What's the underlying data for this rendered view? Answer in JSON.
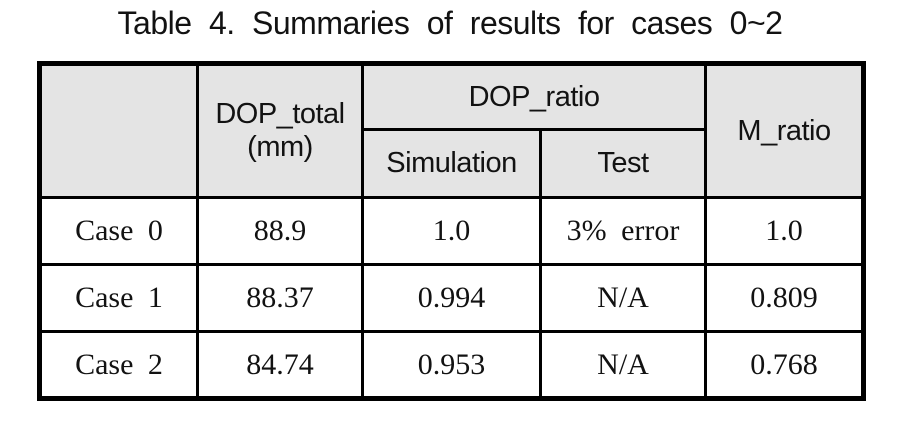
{
  "page": {
    "title": "Table 4. Summaries of results for cases 0~2"
  },
  "table": {
    "header": {
      "corner": "",
      "dop_total_line1": "DOP_total",
      "dop_total_line2": "(mm)",
      "dop_ratio": "DOP_ratio",
      "simulation": "Simulation",
      "test": "Test",
      "m_ratio": "M_ratio"
    },
    "rows": [
      {
        "case": "Case 0",
        "dop_total": "88.9",
        "dop_ratio_simulation": "1.0",
        "dop_ratio_test": "3% error",
        "m_ratio": "1.0"
      },
      {
        "case": "Case 1",
        "dop_total": "88.37",
        "dop_ratio_simulation": "0.994",
        "dop_ratio_test": "N/A",
        "m_ratio": "0.809"
      },
      {
        "case": "Case 2",
        "dop_total": "84.74",
        "dop_ratio_simulation": "0.953",
        "dop_ratio_test": "N/A",
        "m_ratio": "0.768"
      }
    ]
  },
  "colors": {
    "header_bg": "#e4e4e4",
    "border": "#000000",
    "text": "#121212",
    "page_bg": "#ffffff"
  }
}
